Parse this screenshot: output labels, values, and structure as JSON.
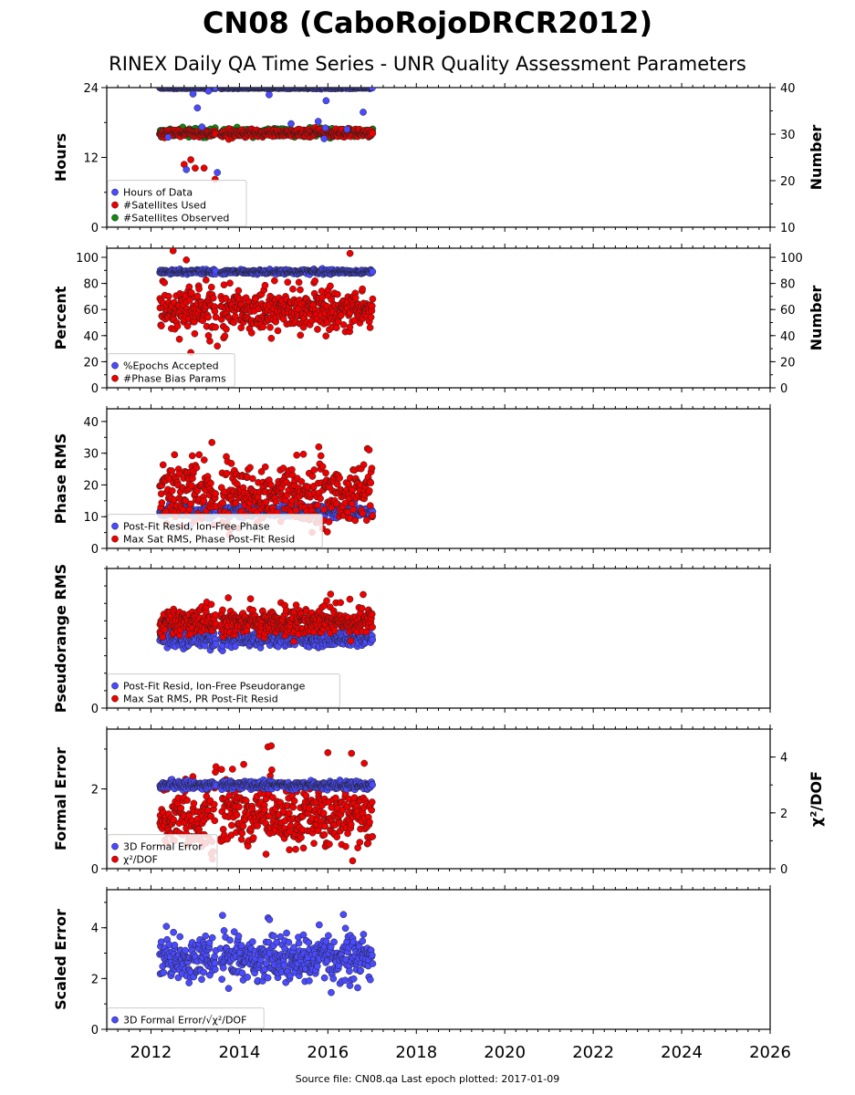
{
  "title": "CN08 (CaboRojoDRCR2012)",
  "subtitle": "RINEX Daily QA Time Series - UNR Quality Assessment Parameters",
  "footer": "Source file: CN08.qa Last epoch plotted: 2017-01-09",
  "colors": {
    "blue": "#4a4aff",
    "red": "#ee0000",
    "green": "#108a10"
  },
  "chart_data": [
    {
      "type": "scatter",
      "panel": 1,
      "xlim": [
        2011,
        2026
      ],
      "x_ticks": [
        "2012",
        "2014",
        "2016",
        "2018",
        "2020",
        "2022",
        "2024",
        "2026"
      ],
      "ylabel": "Hours",
      "ylabel_right": "Number",
      "ylim": [
        0,
        24
      ],
      "ylim_right": [
        10,
        40
      ],
      "y_ticks": [
        "0",
        "12",
        "24"
      ],
      "y_ticks_right": [
        "10",
        "20",
        "30",
        "40"
      ],
      "legend": "lower-left",
      "series": [
        {
          "name": "Hours of Data",
          "axis": "left",
          "typical": 24,
          "range": [
            2012.2,
            2017.02
          ]
        },
        {
          "name": "#Satellites Used",
          "axis": "right",
          "typical": 30.5,
          "range": [
            2012.2,
            2017.02
          ]
        },
        {
          "name": "#Satellites Observed",
          "axis": "right",
          "typical": 30.5,
          "range": [
            2012.2,
            2017.02
          ]
        }
      ]
    },
    {
      "type": "scatter",
      "panel": 2,
      "xlim": [
        2011,
        2026
      ],
      "ylabel": "Percent",
      "ylabel_right": "Number",
      "ylim": [
        0,
        107
      ],
      "y_ticks": [
        "0",
        "20",
        "40",
        "60",
        "80",
        "100"
      ],
      "y_ticks_right": [
        "0",
        "20",
        "40",
        "60",
        "80",
        "100"
      ],
      "legend": "lower-left",
      "series": [
        {
          "name": "%Epochs Accepted",
          "axis": "left",
          "typical": 89,
          "range": [
            2012.2,
            2017.02
          ]
        },
        {
          "name": "#Phase Bias Params",
          "axis": "right",
          "typical": 60,
          "range": [
            2012.2,
            2017.02
          ]
        }
      ]
    },
    {
      "type": "scatter",
      "panel": 3,
      "xlim": [
        2011,
        2026
      ],
      "ylabel": "Phase RMS",
      "ylim": [
        0,
        44
      ],
      "y_ticks": [
        "0",
        "10",
        "20",
        "30",
        "40"
      ],
      "legend": "lower-left",
      "series": [
        {
          "name": "Post-Fit Resid, Ion-Free Phase",
          "typical": 10,
          "range": [
            2012.2,
            2017.02
          ]
        },
        {
          "name": "Max Sat RMS, Phase Post-Fit Resid",
          "typical": 17,
          "range": [
            2012.2,
            2017.02
          ]
        }
      ]
    },
    {
      "type": "scatter",
      "panel": 4,
      "xlim": [
        2011,
        2026
      ],
      "ylabel": "Pseudorange RMS",
      "ylim": [
        0,
        1
      ],
      "y_ticks": [
        "0"
      ],
      "legend": "lower-left",
      "series": [
        {
          "name": "Post-Fit Resid, Ion-Free Pseudorange",
          "typical": 0.5,
          "range": [
            2012.2,
            2017.02
          ]
        },
        {
          "name": "Max Sat RMS, PR Post-Fit Resid",
          "typical": 0.62,
          "range": [
            2012.2,
            2017.02
          ]
        }
      ]
    },
    {
      "type": "scatter",
      "panel": 5,
      "xlim": [
        2011,
        2026
      ],
      "ylabel": "Formal Error",
      "ylabel_right": "χ²/DOF",
      "ylim": [
        0,
        3.5
      ],
      "ylim_right": [
        0,
        5
      ],
      "y_ticks": [
        "0",
        "2"
      ],
      "y_ticks_right": [
        "0",
        "2",
        "4"
      ],
      "legend": "lower-left",
      "series": [
        {
          "name": "3D Formal Error",
          "axis": "left",
          "typical": 2.1,
          "range": [
            2012.2,
            2017.02
          ]
        },
        {
          "name": "χ²/DOF",
          "axis": "right",
          "typical": 1.8,
          "range": [
            2012.2,
            2017.02
          ]
        }
      ]
    },
    {
      "type": "scatter",
      "panel": 6,
      "xlim": [
        2011,
        2026
      ],
      "ylabel": "Scaled Error",
      "ylim": [
        0,
        5.5
      ],
      "y_ticks": [
        "0",
        "2",
        "4"
      ],
      "legend": "lower-left",
      "series": [
        {
          "name": "3D Formal Error/√χ²/DOF",
          "typical": 2.8,
          "range": [
            2012.2,
            2017.02
          ]
        }
      ]
    }
  ]
}
